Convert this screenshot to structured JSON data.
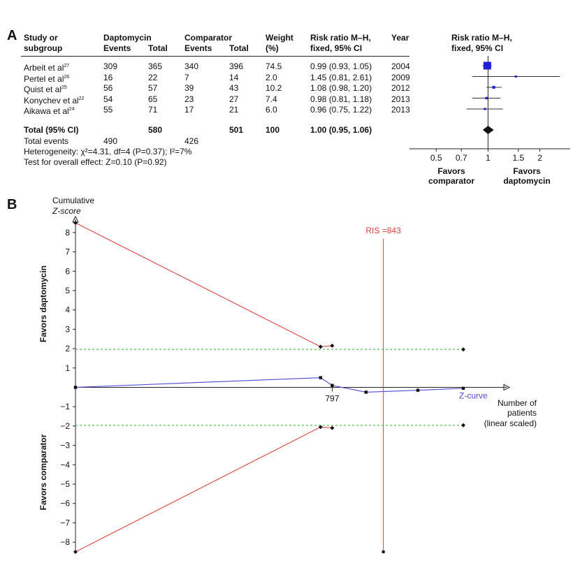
{
  "panel_a": {
    "letter": "A",
    "headers": {
      "study_line1": "Study or",
      "study_line2": "subgroup",
      "dapto_line1": "Daptomycin",
      "dapto_events": "Events",
      "dapto_total": "Total",
      "comp_line1": "Comparator",
      "comp_events": "Events",
      "comp_total": "Total",
      "weight_line1": "Weight",
      "weight_line2": "(%)",
      "rr_line1": "Risk ratio M–H,",
      "rr_line2": "fixed, 95% CI",
      "year": "Year",
      "plot_line1": "Risk ratio M–H,",
      "plot_line2": "fixed, 95% CI"
    },
    "studies": [
      {
        "name": "Arbeit et al",
        "ref": "27",
        "d_events": "309",
        "d_total": "365",
        "c_events": "340",
        "c_total": "396",
        "weight": "74.5",
        "rr_text": "0.99 (0.93, 1.05)",
        "year": "2004"
      },
      {
        "name": "Pertel et al",
        "ref": "26",
        "d_events": "16",
        "d_total": "22",
        "c_events": "7",
        "c_total": "14",
        "weight": "2.0",
        "rr_text": "1.45 (0.81, 2.61)",
        "year": "2009"
      },
      {
        "name": "Quist et al",
        "ref": "25",
        "d_events": "56",
        "d_total": "57",
        "c_events": "39",
        "c_total": "43",
        "weight": "10.2",
        "rr_text": "1.08 (0.98, 1.20)",
        "year": "2012"
      },
      {
        "name": "Konychev et al",
        "ref": "22",
        "d_events": "54",
        "d_total": "65",
        "c_events": "23",
        "c_total": "27",
        "weight": "7.4",
        "rr_text": "0.98 (0.81, 1.18)",
        "year": "2013"
      },
      {
        "name": "Aikawa et al",
        "ref": "24",
        "d_events": "55",
        "d_total": "71",
        "c_events": "17",
        "c_total": "21",
        "weight": "6.0",
        "rr_text": "0.96 (0.75, 1.22)",
        "year": "2013"
      }
    ],
    "total": {
      "label": "Total (95% CI)",
      "d_total": "580",
      "c_total": "501",
      "weight": "100",
      "rr_text": "1.00 (0.95, 1.06)"
    },
    "total_events": {
      "label": "Total events",
      "d_events": "490",
      "c_events": "426"
    },
    "heterogeneity": "Heterogeneity: χ²=4.31, df=4 (P=0.37); I²=7%",
    "overall_effect": "Test for overall effect: Z=0.10 (P=0.92)",
    "favors_left_1": "Favors",
    "favors_left_2": "comparator",
    "favors_right_1": "Favors",
    "favors_right_2": "daptomycin",
    "box_color": "#1f1fd6"
  },
  "panel_b": {
    "letter": "B",
    "y_title_1": "Cumulative",
    "y_title_2": "Z-score",
    "favors_upper": "Favors daptomycin",
    "favors_lower": "Favors comparator",
    "ris_label": "RIS =843",
    "tick_797": "797",
    "zcurve_label": "Z-curve",
    "x_title_1": "Number of",
    "x_title_2": "patients",
    "x_title_3": "(linear scaled)",
    "colors": {
      "boundary": "#d9453e",
      "zcurve": "#4a4ad6",
      "conventional": "#44bb44",
      "ris": "#d9453e"
    }
  },
  "chart_data": [
    {
      "type": "forest",
      "scale": "log",
      "ticks": [
        0.5,
        0.7,
        1,
        1.5,
        2
      ],
      "tick_labels": [
        "0.5",
        "0.7",
        "1",
        "1.5",
        "2"
      ],
      "xlim": [
        0.35,
        3.0
      ],
      "studies": [
        {
          "name": "Arbeit et al",
          "rr": 0.99,
          "lo": 0.93,
          "hi": 1.05,
          "weight": 74.5
        },
        {
          "name": "Pertel et al",
          "rr": 1.45,
          "lo": 0.81,
          "hi": 2.61,
          "weight": 2.0
        },
        {
          "name": "Quist et al",
          "rr": 1.08,
          "lo": 0.98,
          "hi": 1.2,
          "weight": 10.2
        },
        {
          "name": "Konychev et al",
          "rr": 0.98,
          "lo": 0.81,
          "hi": 1.18,
          "weight": 7.4
        },
        {
          "name": "Aikawa et al",
          "rr": 0.96,
          "lo": 0.75,
          "hi": 1.22,
          "weight": 6.0
        }
      ],
      "pooled": {
        "rr": 1.0,
        "lo": 0.95,
        "hi": 1.06
      }
    },
    {
      "type": "line",
      "ylim": [
        -8.5,
        8.5
      ],
      "y_ticks": [
        8,
        7,
        6,
        5,
        4,
        3,
        2,
        1,
        -1,
        -2,
        -3,
        -4,
        -5,
        -6,
        -7,
        -8
      ],
      "xlim": [
        0,
        1200
      ],
      "ris": 843,
      "series": [
        {
          "key": "zcurve",
          "points": [
            [
              0,
              0
            ],
            [
              761,
              0.5
            ],
            [
              797,
              0.1
            ],
            [
              902,
              -0.25
            ],
            [
              1063,
              -0.15
            ],
            [
              1204,
              -0.05
            ]
          ]
        },
        {
          "key": "upper_boundary",
          "points": [
            [
              0,
              8.5
            ],
            [
              761,
              2.1
            ],
            [
              797,
              2.15
            ]
          ]
        },
        {
          "key": "lower_boundary",
          "points": [
            [
              0,
              -8.5
            ],
            [
              761,
              -2.05
            ],
            [
              797,
              -2.1
            ]
          ]
        },
        {
          "key": "conv_upper",
          "points": [
            [
              0,
              1.96
            ],
            [
              1204,
              1.96
            ]
          ]
        },
        {
          "key": "conv_lower",
          "points": [
            [
              0,
              -1.96
            ],
            [
              1204,
              -1.96
            ]
          ]
        }
      ]
    }
  ]
}
